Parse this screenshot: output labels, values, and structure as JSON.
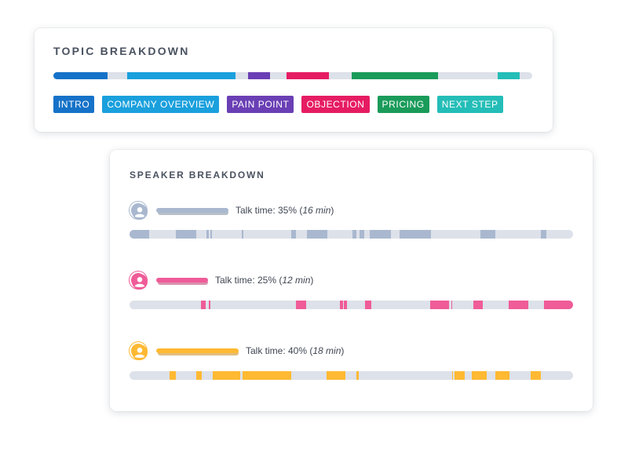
{
  "topic_breakdown": {
    "title": "TOPIC BREAKDOWN",
    "timeline": [
      {
        "topic": "INTRO",
        "start": 0.0,
        "end": 0.113
      },
      {
        "topic": "COMPANY OVERVIEW",
        "start": 0.154,
        "end": 0.38
      },
      {
        "topic": "PAIN POINT",
        "start": 0.406,
        "end": 0.452
      },
      {
        "topic": "OBJECTION",
        "start": 0.487,
        "end": 0.576
      },
      {
        "topic": "PRICING",
        "start": 0.623,
        "end": 0.803
      },
      {
        "topic": "NEXT STEP",
        "start": 0.928,
        "end": 0.974
      }
    ],
    "tags": [
      {
        "label": "INTRO",
        "color": "#1572c8"
      },
      {
        "label": "COMPANY OVERVIEW",
        "color": "#1aa0dd"
      },
      {
        "label": "PAIN POINT",
        "color": "#6a3fb5"
      },
      {
        "label": "OBJECTION",
        "color": "#e61c63"
      },
      {
        "label": "PRICING",
        "color": "#1a9b5a"
      },
      {
        "label": "NEXT STEP",
        "color": "#24bdb7"
      }
    ]
  },
  "speaker_breakdown": {
    "title": "SPEAKER BREAKDOWN",
    "speakers": [
      {
        "color": "#a9b8cf",
        "talk_prefix": "Talk time: 35% (",
        "talk_minutes": "16 min",
        "talk_suffix": ")",
        "talk_share": 0.35,
        "segments": [
          [
            0.0,
            0.044
          ],
          [
            0.104,
            0.15
          ],
          [
            0.174,
            0.178
          ],
          [
            0.182,
            0.186
          ],
          [
            0.253,
            0.257
          ],
          [
            0.365,
            0.375
          ],
          [
            0.4,
            0.446
          ],
          [
            0.502,
            0.511
          ],
          [
            0.518,
            0.53
          ],
          [
            0.542,
            0.59
          ],
          [
            0.608,
            0.68
          ],
          [
            0.792,
            0.824
          ],
          [
            0.927,
            0.94
          ]
        ]
      },
      {
        "color": "#ef5c98",
        "talk_prefix": "Talk time: 25% (",
        "talk_minutes": "12 min",
        "talk_suffix": ")",
        "talk_share": 0.25,
        "segments": [
          [
            0.161,
            0.172
          ],
          [
            0.178,
            0.182
          ],
          [
            0.375,
            0.398
          ],
          [
            0.475,
            0.481
          ],
          [
            0.483,
            0.49
          ],
          [
            0.531,
            0.545
          ],
          [
            0.677,
            0.72
          ],
          [
            0.725,
            0.728
          ],
          [
            0.775,
            0.797
          ],
          [
            0.855,
            0.899
          ],
          [
            0.935,
            1.0
          ]
        ]
      },
      {
        "color": "#ffb933",
        "talk_prefix": "Talk time: 40% (",
        "talk_minutes": "18 min",
        "talk_suffix": ")",
        "talk_share": 0.4,
        "segments": [
          [
            0.091,
            0.104
          ],
          [
            0.15,
            0.162
          ],
          [
            0.188,
            0.25
          ],
          [
            0.255,
            0.365
          ],
          [
            0.445,
            0.486
          ],
          [
            0.511,
            0.516
          ],
          [
            0.727,
            0.73
          ],
          [
            0.733,
            0.755
          ],
          [
            0.772,
            0.806
          ],
          [
            0.825,
            0.856
          ],
          [
            0.905,
            0.927
          ]
        ]
      }
    ]
  }
}
